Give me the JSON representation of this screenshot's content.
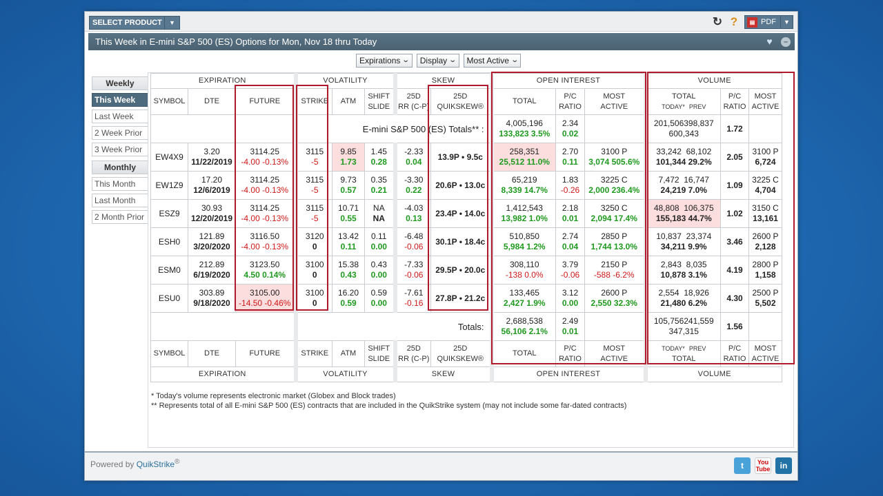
{
  "topbar": {
    "select_product": "SELECT PRODUCT",
    "pdf": "PDF"
  },
  "title": "This Week in E-mini S&P 500 (ES) Options for Mon, Nov 18 thru Today",
  "filters": [
    "Expirations",
    "Display",
    "Most Active"
  ],
  "sidebar": {
    "weekly_head": "Weekly",
    "weekly_items": [
      "This Week",
      "Last Week",
      "2 Week Prior",
      "3 Week Prior"
    ],
    "monthly_head": "Monthly",
    "monthly_items": [
      "This Month",
      "Last Month",
      "2 Month Prior"
    ]
  },
  "groups": {
    "expiration": "EXPIRATION",
    "volatility": "VOLATILITY",
    "skew": "SKEW",
    "open_interest": "OPEN INTEREST",
    "volume": "VOLUME"
  },
  "cols": {
    "symbol": "SYMBOL",
    "dte": "DTE",
    "future": "FUTURE",
    "strike": "STRIKE",
    "atm": "ATM",
    "shift1": "SHIFT",
    "shift2": "SLIDE",
    "rr1": "25D",
    "rr2": "RR (C-P)",
    "qs1": "25D",
    "qs2": "QUIKSKEW®",
    "oi_total": "TOTAL",
    "pc1": "P/C",
    "pc2": "RATIO",
    "ma1": "MOST",
    "ma2": "ACTIVE",
    "vol_total": "TOTAL",
    "today": "TODAY*",
    "prev": "PREV"
  },
  "es_totals": {
    "label": "E-mini S&P 500 (ES) Totals** :",
    "oi_total": "4,005,196",
    "oi_change": "133,823  3.5%",
    "pc": "2.34",
    "pc_change": "0.02",
    "vol_today": "201,506",
    "vol_prev": "398,837",
    "vol_total": "600,343",
    "vol_pc": "1.72"
  },
  "rows": [
    {
      "symbol": "EW4X9",
      "dte": "3.20",
      "date": "11/22/2019",
      "future": "3114.25",
      "fchg": "-4.00 -0.13%",
      "strike": "3115",
      "schg": "-5",
      "atm": "9.85",
      "atm_chg": "1.73",
      "shift": "1.45",
      "shift_chg": "0.28",
      "rr": "-2.33",
      "rr_chg": "0.04",
      "qs": "13.9P • 9.5c",
      "oi": "258,351",
      "oi_chg": "25,512  11.0%",
      "oi_pc": "2.70",
      "oi_pc_chg": "0.11",
      "oi_ma": "3100 P",
      "oi_ma_chg": "3,074  505.6%",
      "v_today": "33,242",
      "v_prev": "68,102",
      "v_total": "101,344  29.2%",
      "v_pc": "2.05",
      "v_ma": "3100 P",
      "v_ma_vol": "6,724"
    },
    {
      "symbol": "EW1Z9",
      "dte": "17.20",
      "date": "12/6/2019",
      "future": "3114.25",
      "fchg": "-4.00 -0.13%",
      "strike": "3115",
      "schg": "-5",
      "atm": "9.73",
      "atm_chg": "0.57",
      "shift": "0.35",
      "shift_chg": "0.21",
      "rr": "-3.30",
      "rr_chg": "0.22",
      "qs": "20.6P • 13.0c",
      "oi": "65,219",
      "oi_chg": "8,339  14.7%",
      "oi_pc": "1.83",
      "oi_pc_chg": "-0.26",
      "oi_ma": "3225 C",
      "oi_ma_chg": "2,000  236.4%",
      "v_today": "7,472",
      "v_prev": "16,747",
      "v_total": "24,219  7.0%",
      "v_pc": "1.09",
      "v_ma": "3225 C",
      "v_ma_vol": "4,704"
    },
    {
      "symbol": "ESZ9",
      "dte": "30.93",
      "date": "12/20/2019",
      "future": "3114.25",
      "fchg": "-4.00 -0.13%",
      "strike": "3115",
      "schg": "-5",
      "atm": "10.71",
      "atm_chg": "0.55",
      "shift": "NA",
      "shift_chg": "NA",
      "rr": "-4.03",
      "rr_chg": "0.13",
      "qs": "23.4P • 14.0c",
      "oi": "1,412,543",
      "oi_chg": "13,982  1.0%",
      "oi_pc": "2.18",
      "oi_pc_chg": "0.01",
      "oi_ma": "3250 C",
      "oi_ma_chg": "2,094  17.4%",
      "v_today": "48,808",
      "v_prev": "106,375",
      "v_total": "155,183  44.7%",
      "v_pc": "1.02",
      "v_ma": "3150 C",
      "v_ma_vol": "13,161"
    },
    {
      "symbol": "ESH0",
      "dte": "121.89",
      "date": "3/20/2020",
      "future": "3116.50",
      "fchg": "-4.00 -0.13%",
      "strike": "3120",
      "schg": "0",
      "atm": "13.42",
      "atm_chg": "0.11",
      "shift": "0.11",
      "shift_chg": "0.00",
      "rr": "-6.48",
      "rr_chg": "-0.06",
      "qs": "30.1P • 18.4c",
      "oi": "510,850",
      "oi_chg": "5,984  1.2%",
      "oi_pc": "2.74",
      "oi_pc_chg": "0.04",
      "oi_ma": "2850 P",
      "oi_ma_chg": "1,744  13.0%",
      "v_today": "10,837",
      "v_prev": "23,374",
      "v_total": "34,211  9.9%",
      "v_pc": "3.46",
      "v_ma": "2600 P",
      "v_ma_vol": "2,128"
    },
    {
      "symbol": "ESM0",
      "dte": "212.89",
      "date": "6/19/2020",
      "future": "3123.50",
      "fchg": "4.50  0.14%",
      "strike": "3100",
      "schg": "0",
      "atm": "15.38",
      "atm_chg": "0.43",
      "shift": "0.43",
      "shift_chg": "0.00",
      "rr": "-7.33",
      "rr_chg": "-0.06",
      "qs": "29.5P • 20.0c",
      "oi": "308,110",
      "oi_chg": "-138  0.0%",
      "oi_pc": "3.79",
      "oi_pc_chg": "-0.06",
      "oi_ma": "2150 P",
      "oi_ma_chg": "-588  -6.2%",
      "v_today": "2,843",
      "v_prev": "8,035",
      "v_total": "10,878  3.1%",
      "v_pc": "4.19",
      "v_ma": "2800 P",
      "v_ma_vol": "1,158"
    },
    {
      "symbol": "ESU0",
      "dte": "303.89",
      "date": "9/18/2020",
      "future": "3105.00",
      "fchg": "-14.50 -0.46%",
      "strike": "3100",
      "schg": "0",
      "atm": "16.20",
      "atm_chg": "0.59",
      "shift": "0.59",
      "shift_chg": "0.00",
      "rr": "-7.61",
      "rr_chg": "-0.16",
      "qs": "27.8P • 21.2c",
      "oi": "133,465",
      "oi_chg": "2,427  1.9%",
      "oi_pc": "3.12",
      "oi_pc_chg": "0.00",
      "oi_ma": "2600 P",
      "oi_ma_chg": "2,550  32.3%",
      "v_today": "2,554",
      "v_prev": "18,926",
      "v_total": "21,480  6.2%",
      "v_pc": "4.30",
      "v_ma": "2500 P",
      "v_ma_vol": "5,502"
    }
  ],
  "totals": {
    "label": "Totals:",
    "oi_total": "2,688,538",
    "oi_change": "56,106  2.1%",
    "pc": "2.49",
    "pc_change": "0.01",
    "vol_today": "105,756",
    "vol_prev": "241,559",
    "vol_total": "347,315",
    "vol_pc": "1.56"
  },
  "notes": [
    "* Today's volume represents electronic market (Globex and Block trades)",
    "** Represents total of all E-mini S&P 500 (ES) contracts that are included in the QuikStrike system (may not include some far-dated contracts)"
  ],
  "footer": {
    "powered_by": "Powered by ",
    "brand": "QuikStrike",
    "reg": "®"
  }
}
